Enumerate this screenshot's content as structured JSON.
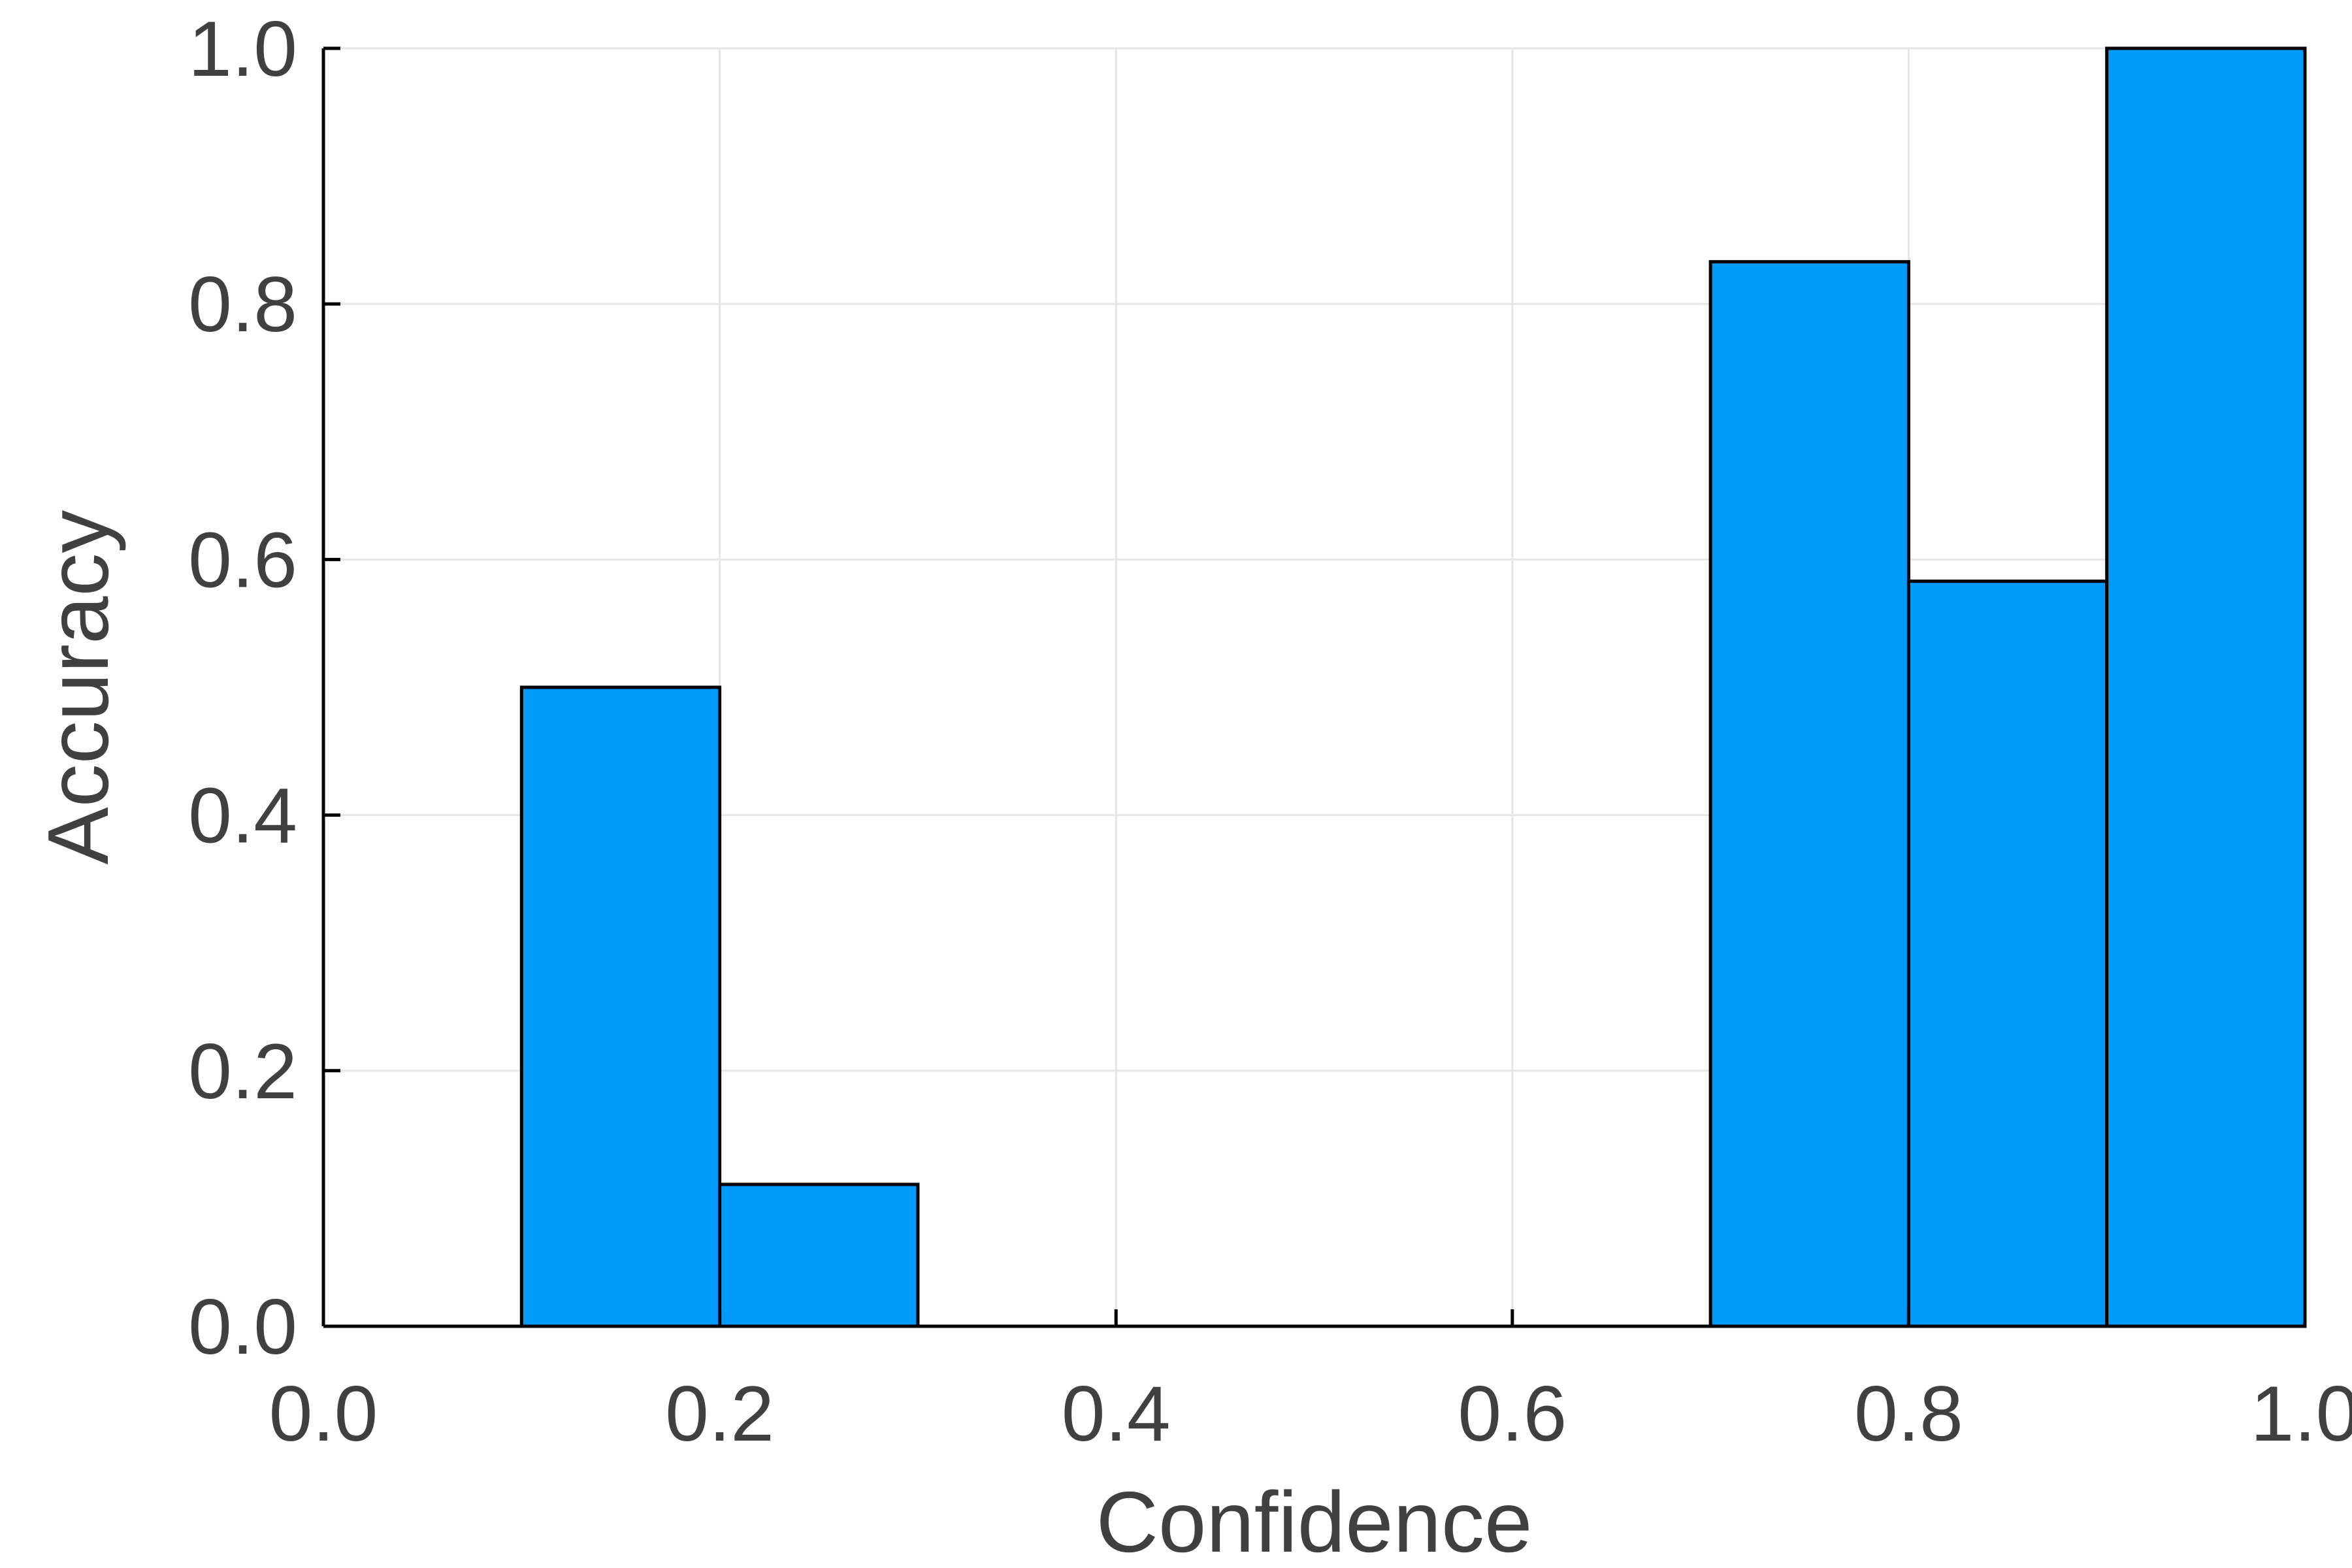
{
  "chart_data": {
    "type": "bar",
    "histogram": true,
    "bin_edges": [
      0.0,
      0.1,
      0.2,
      0.3,
      0.4,
      0.5,
      0.6,
      0.7,
      0.8,
      0.9,
      1.0
    ],
    "values": [
      0.0,
      0.5,
      0.111,
      0.0,
      0.0,
      0.0,
      0.0,
      0.833,
      0.583,
      1.0
    ],
    "title": "",
    "xlabel": "Confidence",
    "ylabel": "Accuracy",
    "xlim": [
      0.0,
      1.0
    ],
    "ylim": [
      0.0,
      1.0
    ],
    "xticks": [
      "0.0",
      "0.2",
      "0.4",
      "0.6",
      "0.8",
      "1.0"
    ],
    "yticks": [
      "0.0",
      "0.2",
      "0.4",
      "0.6",
      "0.8",
      "1.0"
    ],
    "grid": true,
    "legend": "none",
    "bar_color": "#009AFA",
    "edge_color": "#000000",
    "text_color": "#404040"
  }
}
